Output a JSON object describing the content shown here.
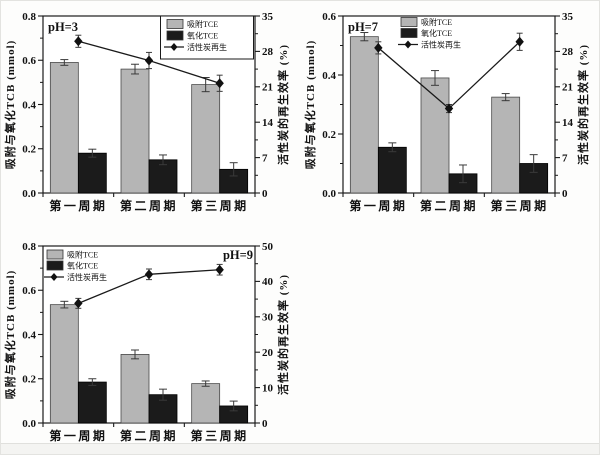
{
  "colors": {
    "adsorb_bar": "#b5b5b5",
    "adsorb_bar_border": "#4a4a4a",
    "oxidize_bar": "#1b1b1b",
    "line": "#1a1a1a",
    "marker": "#111111",
    "frame": "#1a1a1a",
    "error_bar": "#3a3a3a",
    "page_bg": "#fdfdfc"
  },
  "chart_data": [
    {
      "type": "bar",
      "title": "pH=3",
      "title_corner": "top-left",
      "categories": [
        "第一周期",
        "第二周期",
        "第三周期"
      ],
      "series": [
        {
          "name": "吸附TCE",
          "kind": "bar",
          "axis": "left",
          "values": [
            0.59,
            0.56,
            0.49
          ],
          "errors": [
            0.013,
            0.022,
            0.032
          ]
        },
        {
          "name": "氧化TCE",
          "kind": "bar",
          "axis": "left",
          "values": [
            0.18,
            0.15,
            0.107
          ],
          "errors": [
            0.018,
            0.022,
            0.03
          ]
        },
        {
          "name": "活性炭再生",
          "kind": "line",
          "axis": "right",
          "values": [
            30.0,
            26.2,
            21.7
          ],
          "errors": [
            1.2,
            1.6,
            1.6
          ]
        }
      ],
      "left_axis": {
        "label": "吸附与氧化TCB (mmol)",
        "min": 0,
        "max": 0.8,
        "tick_labels": [
          "0.0",
          "0.2",
          "0.4",
          "0.6",
          "0.8"
        ]
      },
      "right_axis": {
        "label": "活性炭的再生效率 (%)",
        "min": 0,
        "max": 35,
        "tick_labels": [
          "0",
          "7",
          "14",
          "21",
          "28",
          "35"
        ]
      },
      "legend": {
        "position": "top-right",
        "border": true
      },
      "grid": false
    },
    {
      "type": "bar",
      "title": "pH=7",
      "title_corner": "top-left",
      "categories": [
        "第一周期",
        "第二周期",
        "第三周期"
      ],
      "series": [
        {
          "name": "吸附TCE",
          "kind": "bar",
          "axis": "left",
          "values": [
            0.53,
            0.39,
            0.325
          ],
          "errors": [
            0.014,
            0.025,
            0.012
          ]
        },
        {
          "name": "氧化TCE",
          "kind": "bar",
          "axis": "left",
          "values": [
            0.155,
            0.065,
            0.1
          ],
          "errors": [
            0.015,
            0.03,
            0.03
          ]
        },
        {
          "name": "活性炭再生",
          "kind": "line",
          "axis": "right",
          "values": [
            28.7,
            16.7,
            29.9
          ],
          "errors": [
            1.2,
            0.8,
            1.7
          ]
        }
      ],
      "left_axis": {
        "label": "吸附与氧化TCB (mmol)",
        "min": 0,
        "max": 0.6,
        "tick_labels": [
          "0.0",
          "0.2",
          "0.4",
          "0.6"
        ]
      },
      "right_axis": {
        "label": "活性炭的再生效率 (%)",
        "min": 0,
        "max": 35,
        "tick_labels": [
          "0",
          "7",
          "14",
          "21",
          "28",
          "35"
        ]
      },
      "legend": {
        "position": "top-center",
        "border": false
      },
      "grid": false
    },
    {
      "type": "bar",
      "title": "pH=9",
      "title_corner": "top-right",
      "categories": [
        "第一周期",
        "第二周期",
        "第三周期"
      ],
      "series": [
        {
          "name": "吸附TCE",
          "kind": "bar",
          "axis": "left",
          "values": [
            0.535,
            0.31,
            0.178
          ],
          "errors": [
            0.015,
            0.02,
            0.012
          ]
        },
        {
          "name": "氧化TCE",
          "kind": "bar",
          "axis": "left",
          "values": [
            0.185,
            0.128,
            0.077
          ],
          "errors": [
            0.015,
            0.025,
            0.022
          ]
        },
        {
          "name": "活性炭再生",
          "kind": "line",
          "axis": "right",
          "values": [
            33.8,
            42.0,
            43.3
          ],
          "errors": [
            1.4,
            1.5,
            1.5
          ]
        }
      ],
      "left_axis": {
        "label": "吸附与氧化TCB (mmol)",
        "min": 0,
        "max": 0.8,
        "tick_labels": [
          "0.0",
          "0.2",
          "0.4",
          "0.6",
          "0.8"
        ]
      },
      "right_axis": {
        "label": "活性炭的再生效率 (%)",
        "min": 0,
        "max": 50,
        "tick_labels": [
          "0",
          "10",
          "20",
          "30",
          "40",
          "50"
        ]
      },
      "legend": {
        "position": "top-left",
        "border": false
      },
      "grid": false
    }
  ]
}
